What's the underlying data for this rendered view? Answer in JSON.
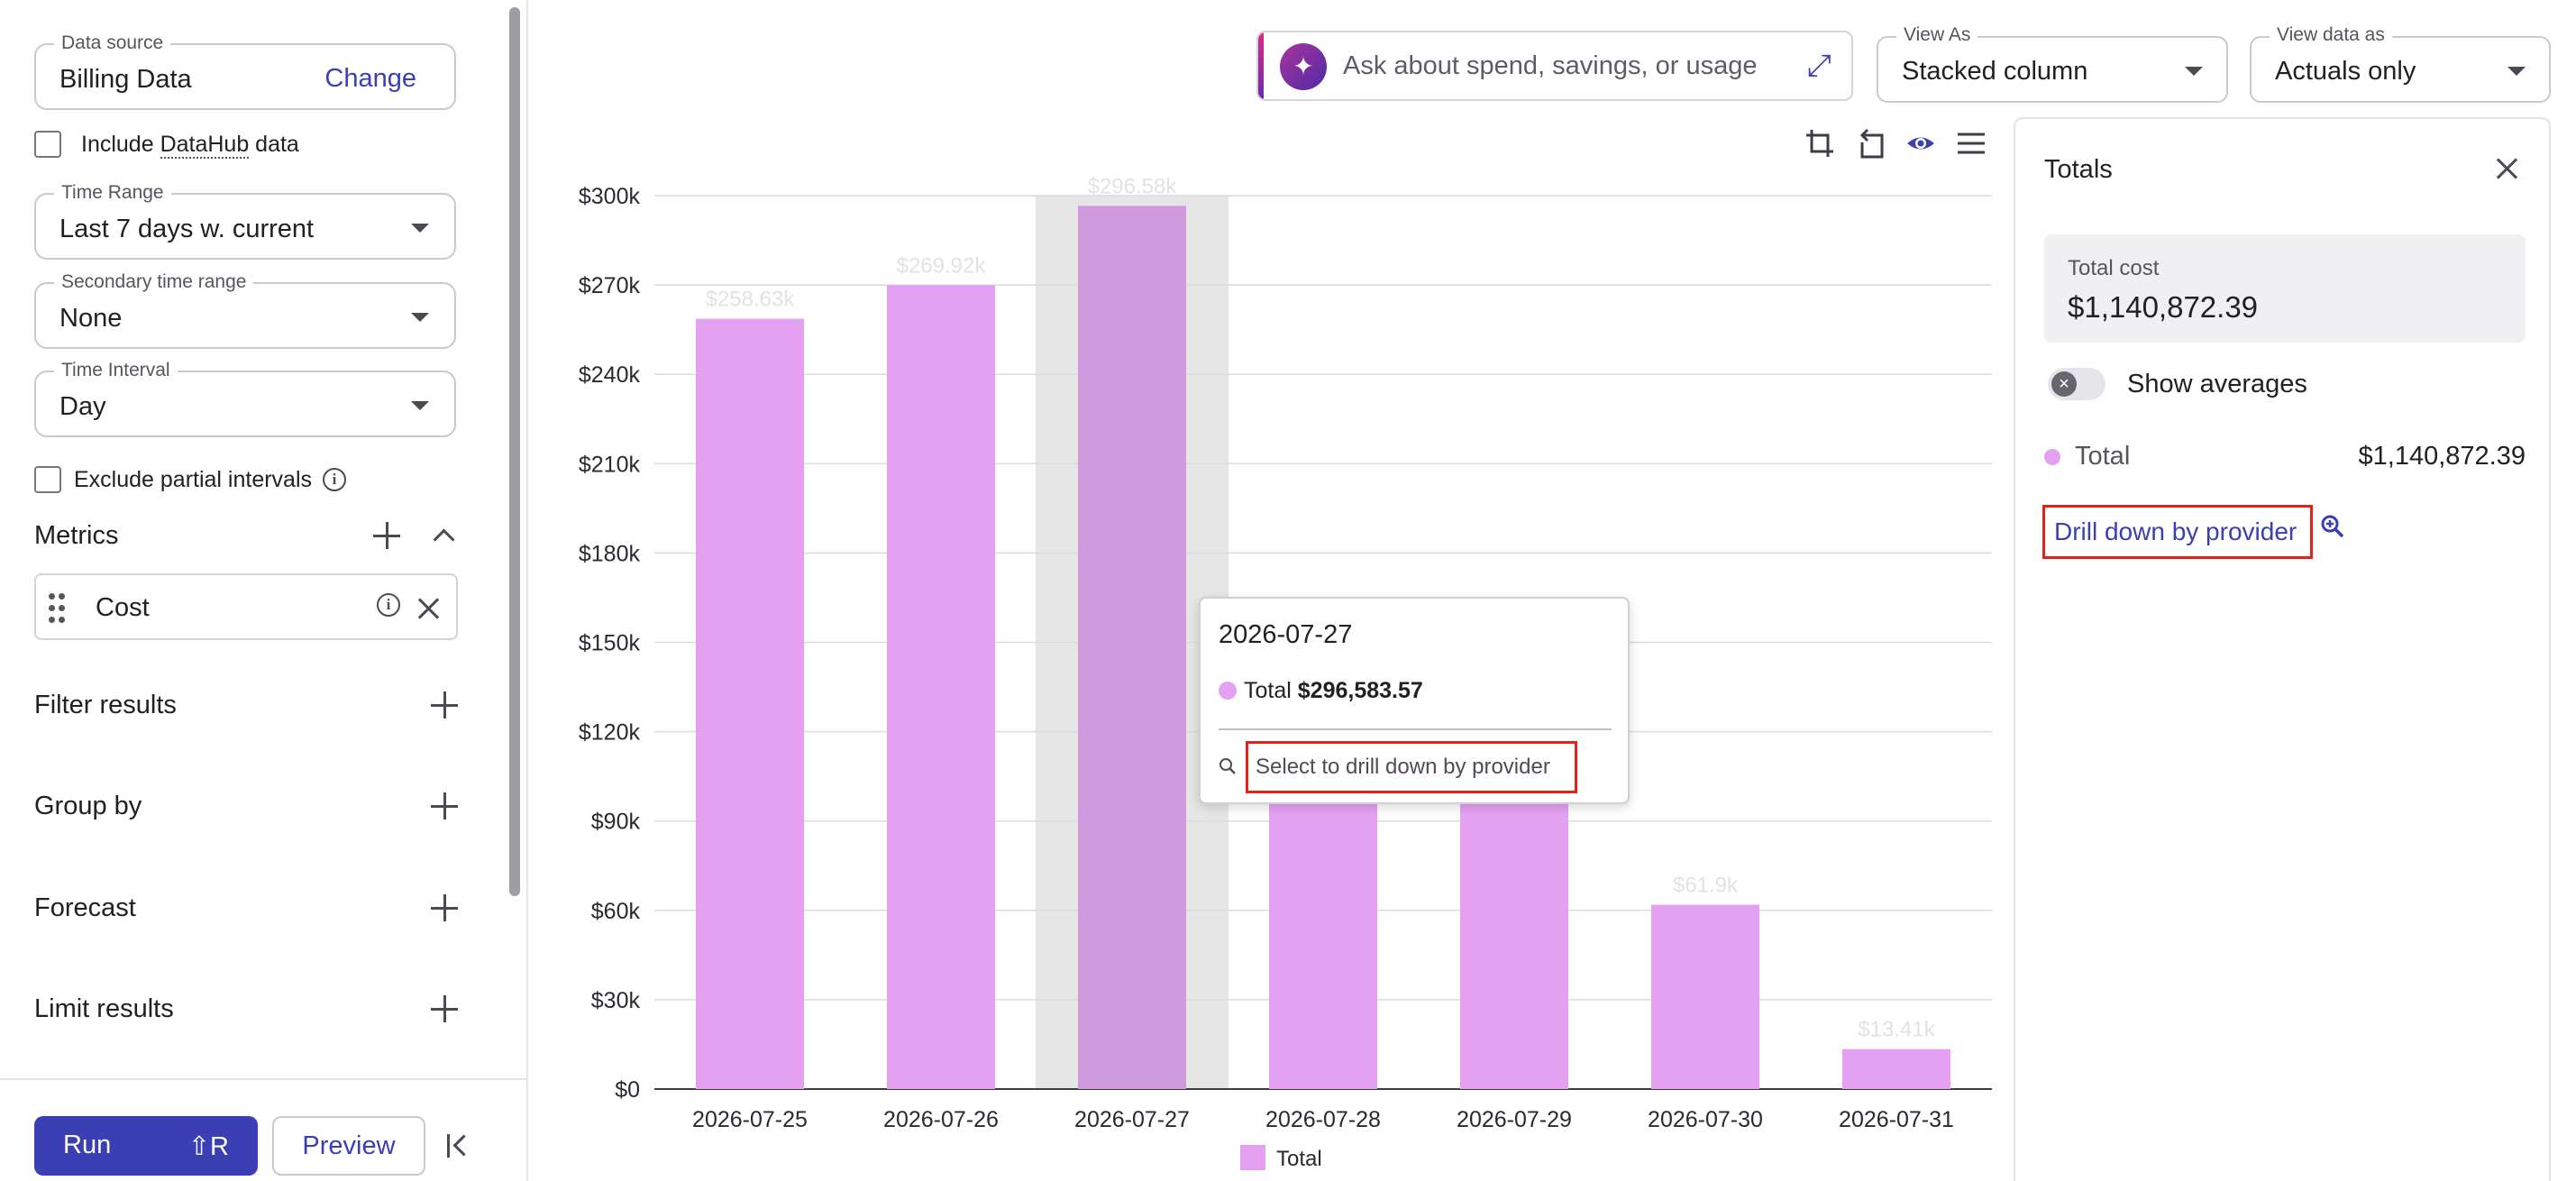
{
  "sidebar": {
    "data_source": {
      "label": "Data source",
      "value": "Billing Data",
      "change": "Change"
    },
    "include_datahub": {
      "prefix": "Include ",
      "link": "DataHub",
      "suffix": " data"
    },
    "time_range": {
      "label": "Time Range",
      "value": "Last 7 days w. current"
    },
    "secondary_range": {
      "label": "Secondary time range",
      "value": "None"
    },
    "time_interval": {
      "label": "Time Interval",
      "value": "Day"
    },
    "exclude_partial": "Exclude partial intervals",
    "metrics": {
      "title": "Metrics",
      "item": "Cost"
    },
    "filter_results": "Filter results",
    "group_by": "Group by",
    "forecast": "Forecast",
    "limit_results": "Limit results",
    "run": {
      "label": "Run",
      "shortcut": "⇧R"
    },
    "preview": "Preview"
  },
  "topbar": {
    "ask_placeholder": "Ask about spend, savings, or usage",
    "view_as": {
      "label": "View As",
      "value": "Stacked column"
    },
    "view_data_as": {
      "label": "View data as",
      "value": "Actuals only"
    }
  },
  "chart_data": {
    "type": "bar",
    "categories": [
      "2026-07-25",
      "2026-07-26",
      "2026-07-27",
      "2026-07-28",
      "2026-07-29",
      "2026-07-30",
      "2026-07-31"
    ],
    "series": [
      {
        "name": "Total",
        "values": [
          258630,
          269920,
          296583.57,
          140000,
          100000,
          61900,
          13410
        ]
      }
    ],
    "data_labels": [
      "$258.63k",
      "$269.92k",
      "$296.58k",
      "",
      "",
      "$61.9k",
      "$13.41k"
    ],
    "yticks": [
      "$0",
      "$30k",
      "$60k",
      "$90k",
      "$120k",
      "$150k",
      "$180k",
      "$210k",
      "$240k",
      "$270k",
      "$300k"
    ],
    "ylim": [
      0,
      300000
    ],
    "highlighted_index": 2,
    "legend": "Total",
    "colors": {
      "bar": "#e4a1f2",
      "highlight_bar": "#d09bdd",
      "highlight_band": "#e6e6e6"
    }
  },
  "tooltip": {
    "date": "2026-07-27",
    "series": "Total",
    "value": "$296,583.57",
    "drill": "Select to drill down by provider"
  },
  "totals": {
    "title": "Totals",
    "total_cost_label": "Total cost",
    "total_cost_value": "$1,140,872.39",
    "show_averages": "Show averages",
    "row_name": "Total",
    "row_value": "$1,140,872.39",
    "drill_link": "Drill down by provider"
  }
}
